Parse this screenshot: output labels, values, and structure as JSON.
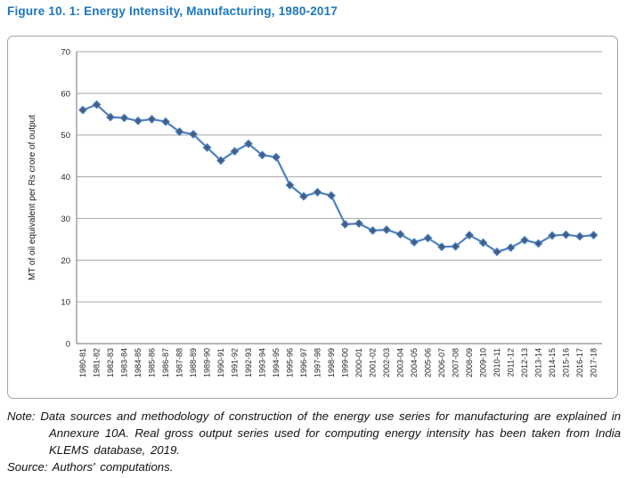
{
  "figure": {
    "title": "Figure 10. 1: Energy Intensity, Manufacturing, 1980-2017",
    "title_color": "#1b76c1"
  },
  "notes": {
    "note_label": "Note:",
    "note_text": "Data sources and methodology of construction of the energy use series for manufacturing are explained in Annexure 10A.  Real gross output series used for computing energy intensity has been taken from India KLEMS database, 2019.",
    "source_label": "Source:",
    "source_text": "Authors' computations."
  },
  "chart_data": {
    "type": "line",
    "title": "",
    "xlabel": "",
    "ylabel": "MT of oil equivalent per Rs crore of output",
    "ylim": [
      0,
      70
    ],
    "ytick_step": 10,
    "grid": true,
    "legend": "none",
    "marker": "diamond",
    "categories": [
      "1980-81",
      "1981-82",
      "1982-83",
      "1983-84",
      "1984-85",
      "1985-86",
      "1986-87",
      "1987-88",
      "1988-89",
      "1989-90",
      "1990-91",
      "1991-92",
      "1992-93",
      "1993-94",
      "1994-95",
      "1995-96",
      "1996-97",
      "1997-98",
      "1998-99",
      "1999-00",
      "2000-01",
      "2001-02",
      "2002-03",
      "2003-04",
      "2004-05",
      "2005-06",
      "2006-07",
      "2007-08",
      "2008-09",
      "2009-10",
      "2010-11",
      "2011-12",
      "2012-13",
      "2013-14",
      "2014-15",
      "2015-16",
      "2016-17",
      "2017-18"
    ],
    "series": [
      {
        "name": "Energy intensity, manufacturing",
        "values": [
          56.0,
          57.3,
          54.3,
          54.1,
          53.4,
          53.8,
          53.2,
          50.8,
          50.2,
          47.0,
          43.9,
          46.1,
          47.9,
          45.2,
          44.7,
          38.0,
          35.3,
          36.3,
          35.5,
          28.6,
          28.8,
          27.1,
          27.3,
          26.2,
          24.3,
          25.3,
          23.2,
          23.3,
          26.0,
          24.2,
          22.0,
          23.0,
          24.8,
          24.0,
          25.9,
          26.1,
          25.7,
          26.0
        ]
      }
    ],
    "colors": {
      "line": "#4f81bd",
      "marker_fill": "#4e5a70",
      "marker_stroke": "#3f7ecc",
      "grid": "#a6a6a6",
      "axis": "#8a8a8a",
      "tick_text": "#262626",
      "axis_title_text": "#1a1a1a"
    }
  }
}
